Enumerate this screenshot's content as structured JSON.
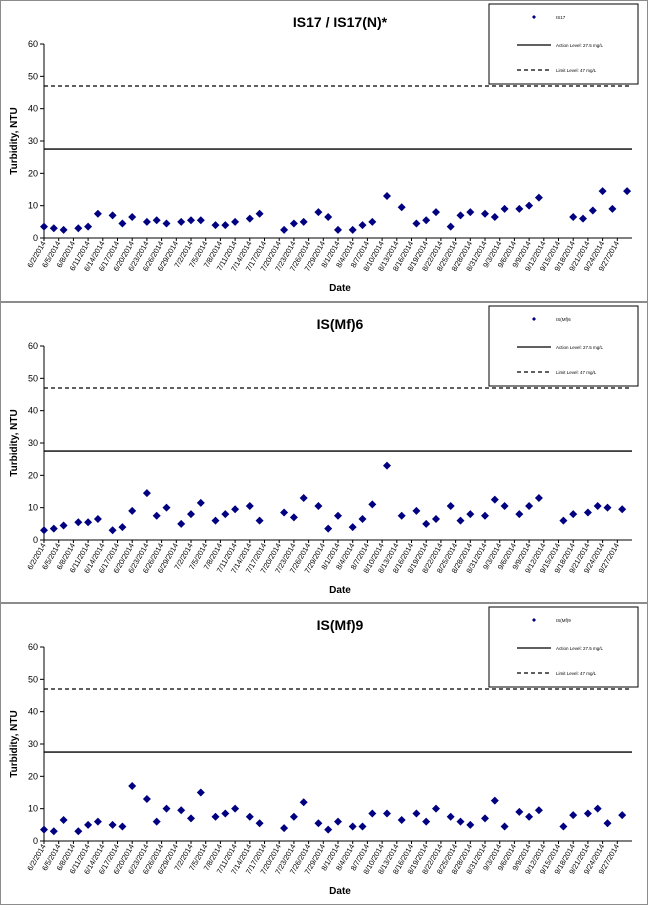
{
  "chart_data": [
    {
      "type": "scatter",
      "title": "IS17 / IS17(N)*",
      "xlabel": "Date",
      "ylabel": "Turbidity, NTU",
      "ylim": [
        0,
        60
      ],
      "yticks": [
        "0",
        "10",
        "20",
        "30",
        "40",
        "50",
        "60"
      ],
      "xtick_labels": [
        "6/2/2014",
        "6/5/2014",
        "6/8/2014",
        "6/11/2014",
        "6/14/2014",
        "6/17/2014",
        "6/20/2014",
        "6/23/2014",
        "6/26/2014",
        "6/29/2014",
        "7/2/2014",
        "7/5/2014",
        "7/8/2014",
        "7/11/2014",
        "7/14/2014",
        "7/17/2014",
        "7/20/2014",
        "7/23/2014",
        "7/26/2014",
        "7/29/2014",
        "8/1/2014",
        "8/4/2014",
        "8/7/2014",
        "8/10/2014",
        "8/13/2014",
        "8/16/2014",
        "8/19/2014",
        "8/22/2014",
        "8/25/2014",
        "8/28/2014",
        "8/31/2014",
        "9/3/2014",
        "9/6/2014",
        "9/9/2014",
        "9/12/2014",
        "9/15/2014",
        "9/18/2014",
        "9/21/2014",
        "9/24/2014",
        "9/27/2014"
      ],
      "grid": false,
      "legend_position": "top-right",
      "legend": [
        "IS17",
        "Action Level: 27.5 mg/L",
        "Limit Level: 47 mg/L"
      ],
      "reference_lines": [
        {
          "label": "Action Level: 27.5 mg/L",
          "value": 27.5,
          "style": "solid"
        },
        {
          "label": "Limit Level: 47 mg/L",
          "value": 47,
          "style": "dashed"
        }
      ],
      "marker_color": "#000080",
      "series": [
        {
          "name": "IS17",
          "x": [
            "6/2/2014",
            "6/4/2014",
            "6/6/2014",
            "6/9/2014",
            "6/11/2014",
            "6/13/2014",
            "6/16/2014",
            "6/18/2014",
            "6/20/2014",
            "6/23/2014",
            "6/25/2014",
            "6/27/2014",
            "6/30/2014",
            "7/2/2014",
            "7/4/2014",
            "7/7/2014",
            "7/9/2014",
            "7/11/2014",
            "7/14/2014",
            "7/16/2014",
            "7/21/2014",
            "7/23/2014",
            "7/25/2014",
            "7/28/2014",
            "7/30/2014",
            "8/1/2014",
            "8/4/2014",
            "8/6/2014",
            "8/8/2014",
            "8/11/2014",
            "8/14/2014",
            "8/17/2014",
            "8/19/2014",
            "8/21/2014",
            "8/24/2014",
            "8/26/2014",
            "8/28/2014",
            "8/31/2014",
            "9/2/2014",
            "9/4/2014",
            "9/7/2014",
            "9/9/2014",
            "9/11/2014",
            "9/18/2014",
            "9/20/2014",
            "9/22/2014",
            "9/24/2014",
            "9/26/2014",
            "9/29/2014"
          ],
          "y": [
            3.5,
            3,
            2.5,
            3,
            3.5,
            7.5,
            7,
            4.5,
            6.5,
            5,
            5.5,
            4.5,
            5,
            5.5,
            5.5,
            4,
            4,
            5,
            6,
            7.5,
            2.5,
            4.5,
            5,
            8,
            6.5,
            2.5,
            2.5,
            4,
            5,
            13,
            9.5,
            4.5,
            5.5,
            8,
            3.5,
            7,
            8,
            7.5,
            6.5,
            9,
            9,
            10,
            12.5,
            6.5,
            6,
            8.5,
            14.5,
            9,
            14.5
          ]
        }
      ]
    },
    {
      "type": "scatter",
      "title": "IS(Mf)6",
      "xlabel": "Date",
      "ylabel": "Turbidity, NTU",
      "ylim": [
        0,
        60
      ],
      "yticks": [
        "0",
        "10",
        "20",
        "30",
        "40",
        "50",
        "60"
      ],
      "xtick_labels": [
        "6/2/2014",
        "6/5/2014",
        "6/8/2014",
        "6/11/2014",
        "6/14/2014",
        "6/17/2014",
        "6/20/2014",
        "6/23/2014",
        "6/26/2014",
        "6/29/2014",
        "7/2/2014",
        "7/5/2014",
        "7/8/2014",
        "7/11/2014",
        "7/14/2014",
        "7/17/2014",
        "7/20/2014",
        "7/23/2014",
        "7/26/2014",
        "7/29/2014",
        "8/1/2014",
        "8/4/2014",
        "8/7/2014",
        "8/10/2014",
        "8/13/2014",
        "8/16/2014",
        "8/19/2014",
        "8/22/2014",
        "8/25/2014",
        "8/28/2014",
        "8/31/2014",
        "9/3/2014",
        "9/6/2014",
        "9/9/2014",
        "9/12/2014",
        "9/15/2014",
        "9/18/2014",
        "9/21/2014",
        "9/24/2014",
        "9/27/2014"
      ],
      "grid": false,
      "legend_position": "top-right",
      "legend": [
        "IS(Mf)6",
        "Action Level: 27.5 mg/L",
        "Limit Level: 47 mg/L"
      ],
      "reference_lines": [
        {
          "label": "Action Level: 27.5 mg/L",
          "value": 27.5,
          "style": "solid"
        },
        {
          "label": "Limit Level: 47 mg/L",
          "value": 47,
          "style": "dashed"
        }
      ],
      "marker_color": "#000080",
      "series": [
        {
          "name": "IS(Mf)6",
          "x": [
            "6/2/2014",
            "6/4/2014",
            "6/6/2014",
            "6/9/2014",
            "6/11/2014",
            "6/13/2014",
            "6/16/2014",
            "6/18/2014",
            "6/20/2014",
            "6/23/2014",
            "6/25/2014",
            "6/27/2014",
            "6/30/2014",
            "7/2/2014",
            "7/4/2014",
            "7/7/2014",
            "7/9/2014",
            "7/11/2014",
            "7/14/2014",
            "7/16/2014",
            "7/21/2014",
            "7/23/2014",
            "7/25/2014",
            "7/28/2014",
            "7/30/2014",
            "8/1/2014",
            "8/4/2014",
            "8/6/2014",
            "8/8/2014",
            "8/11/2014",
            "8/14/2014",
            "8/17/2014",
            "8/19/2014",
            "8/21/2014",
            "8/24/2014",
            "8/26/2014",
            "8/28/2014",
            "8/31/2014",
            "9/2/2014",
            "9/4/2014",
            "9/7/2014",
            "9/9/2014",
            "9/11/2014",
            "9/16/2014",
            "9/18/2014",
            "9/21/2014",
            "9/23/2014",
            "9/25/2014",
            "9/28/2014"
          ],
          "y": [
            3,
            3.5,
            4.5,
            5.5,
            5.5,
            6.5,
            3,
            4,
            9,
            14.5,
            7.5,
            10,
            5,
            8,
            11.5,
            6,
            8,
            9.5,
            10.5,
            6,
            8.5,
            7,
            13,
            10.5,
            3.5,
            7.5,
            4,
            6.5,
            11,
            23,
            7.5,
            9,
            5,
            6.5,
            10.5,
            6,
            8,
            7.5,
            12.5,
            10.5,
            8,
            10.5,
            13,
            6,
            8,
            8.5,
            10.5,
            10,
            9.5
          ]
        }
      ]
    },
    {
      "type": "scatter",
      "title": "IS(Mf)9",
      "xlabel": "Date",
      "ylabel": "Turbidity, NTU",
      "ylim": [
        0,
        60
      ],
      "yticks": [
        "0",
        "10",
        "20",
        "30",
        "40",
        "50",
        "60"
      ],
      "xtick_labels": [
        "6/2/2014",
        "6/5/2014",
        "6/8/2014",
        "6/11/2014",
        "6/14/2014",
        "6/17/2014",
        "6/20/2014",
        "6/23/2014",
        "6/26/2014",
        "6/29/2014",
        "7/2/2014",
        "7/5/2014",
        "7/8/2014",
        "7/11/2014",
        "7/14/2014",
        "7/17/2014",
        "7/20/2014",
        "7/23/2014",
        "7/26/2014",
        "7/29/2014",
        "8/1/2014",
        "8/4/2014",
        "8/7/2014",
        "8/10/2014",
        "8/13/2014",
        "8/16/2014",
        "8/19/2014",
        "8/22/2014",
        "8/25/2014",
        "8/28/2014",
        "8/31/2014",
        "9/3/2014",
        "9/6/2014",
        "9/9/2014",
        "9/12/2014",
        "9/15/2014",
        "9/18/2014",
        "9/21/2014",
        "9/24/2014",
        "9/27/2014"
      ],
      "grid": false,
      "legend_position": "top-right",
      "legend": [
        "IS(Mf)9",
        "Action Level: 27.5 mg/L",
        "Limit Level: 47 mg/L"
      ],
      "reference_lines": [
        {
          "label": "Action Level: 27.5 mg/L",
          "value": 27.5,
          "style": "solid"
        },
        {
          "label": "Limit Level: 47 mg/L",
          "value": 47,
          "style": "dashed"
        }
      ],
      "marker_color": "#000080",
      "series": [
        {
          "name": "IS(Mf)9",
          "x": [
            "6/2/2014",
            "6/4/2014",
            "6/6/2014",
            "6/9/2014",
            "6/11/2014",
            "6/13/2014",
            "6/16/2014",
            "6/18/2014",
            "6/20/2014",
            "6/23/2014",
            "6/25/2014",
            "6/27/2014",
            "6/30/2014",
            "7/2/2014",
            "7/4/2014",
            "7/7/2014",
            "7/9/2014",
            "7/11/2014",
            "7/14/2014",
            "7/16/2014",
            "7/21/2014",
            "7/23/2014",
            "7/25/2014",
            "7/28/2014",
            "7/30/2014",
            "8/1/2014",
            "8/4/2014",
            "8/6/2014",
            "8/8/2014",
            "8/11/2014",
            "8/14/2014",
            "8/17/2014",
            "8/19/2014",
            "8/21/2014",
            "8/24/2014",
            "8/26/2014",
            "8/28/2014",
            "8/31/2014",
            "9/2/2014",
            "9/4/2014",
            "9/7/2014",
            "9/9/2014",
            "9/11/2014",
            "9/16/2014",
            "9/18/2014",
            "9/21/2014",
            "9/23/2014",
            "9/25/2014",
            "9/28/2014"
          ],
          "y": [
            3.5,
            3,
            6.5,
            3,
            5,
            6,
            5,
            4.5,
            17,
            13,
            6,
            10,
            9.5,
            7,
            15,
            7.5,
            8.5,
            10,
            7.5,
            5.5,
            4,
            7.5,
            12,
            5.5,
            3.5,
            6,
            4.5,
            4.5,
            8.5,
            8.5,
            6.5,
            8.5,
            6,
            10,
            7.5,
            6,
            5,
            7,
            12.5,
            4.5,
            9,
            7.5,
            9.5,
            4.5,
            8,
            8.5,
            10,
            5.5,
            8
          ]
        }
      ]
    }
  ]
}
